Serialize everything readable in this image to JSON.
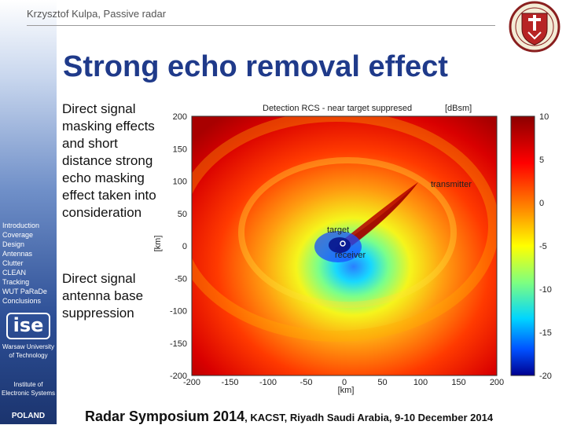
{
  "header": {
    "author": "Krzysztof  Kulpa, Passive radar"
  },
  "sidebar": {
    "items": [
      {
        "label": "Introduction"
      },
      {
        "label": "Coverage"
      },
      {
        "label": "Design"
      },
      {
        "label": "Antennas"
      },
      {
        "label": "Clutter"
      },
      {
        "label": "CLEAN"
      },
      {
        "label": "Tracking"
      },
      {
        "label": "WUT PaRaDe"
      },
      {
        "label": "Conclusions"
      }
    ],
    "logo_text": "ise",
    "university": "Warsaw University of Technology",
    "institute": "Institute of Electronic Systems",
    "country": "POLAND"
  },
  "slide": {
    "title": "Strong echo removal effect",
    "bullet1": "Direct signal masking effects and short distance strong echo masking effect taken into consideration",
    "bullet2": "Direct signal antenna base suppression"
  },
  "chart_data": {
    "type": "heatmap",
    "title": "Detection RCS  - near target suppresed",
    "colorbar_unit": "[dBsm]",
    "xlabel": "[km]",
    "ylabel": "[km]",
    "x_ticks": [
      -200,
      -150,
      -100,
      -50,
      0,
      50,
      100,
      150,
      200
    ],
    "y_ticks": [
      200,
      150,
      100,
      50,
      0,
      -50,
      -100,
      -150,
      -200
    ],
    "xlim": [
      -200,
      200
    ],
    "ylim": [
      -200,
      200
    ],
    "colorbar_ticks": [
      10,
      5,
      0,
      -5,
      -10,
      -15,
      -20
    ],
    "colorbar_range": [
      -20,
      10
    ],
    "annotations": [
      {
        "text": "transmitter",
        "x": 100,
        "y": 100
      },
      {
        "text": "target",
        "x": 0,
        "y": 0
      },
      {
        "text": "receiver",
        "x": 0,
        "y": 0
      }
    ]
  },
  "footer": {
    "event": "Radar Symposium 2014",
    "location": ", KACST, Riyadh  Saudi Arabia,  9-10 December 2014"
  },
  "colors": {
    "title": "#1f3a8a",
    "sidebar_dark": "#1b346e"
  }
}
